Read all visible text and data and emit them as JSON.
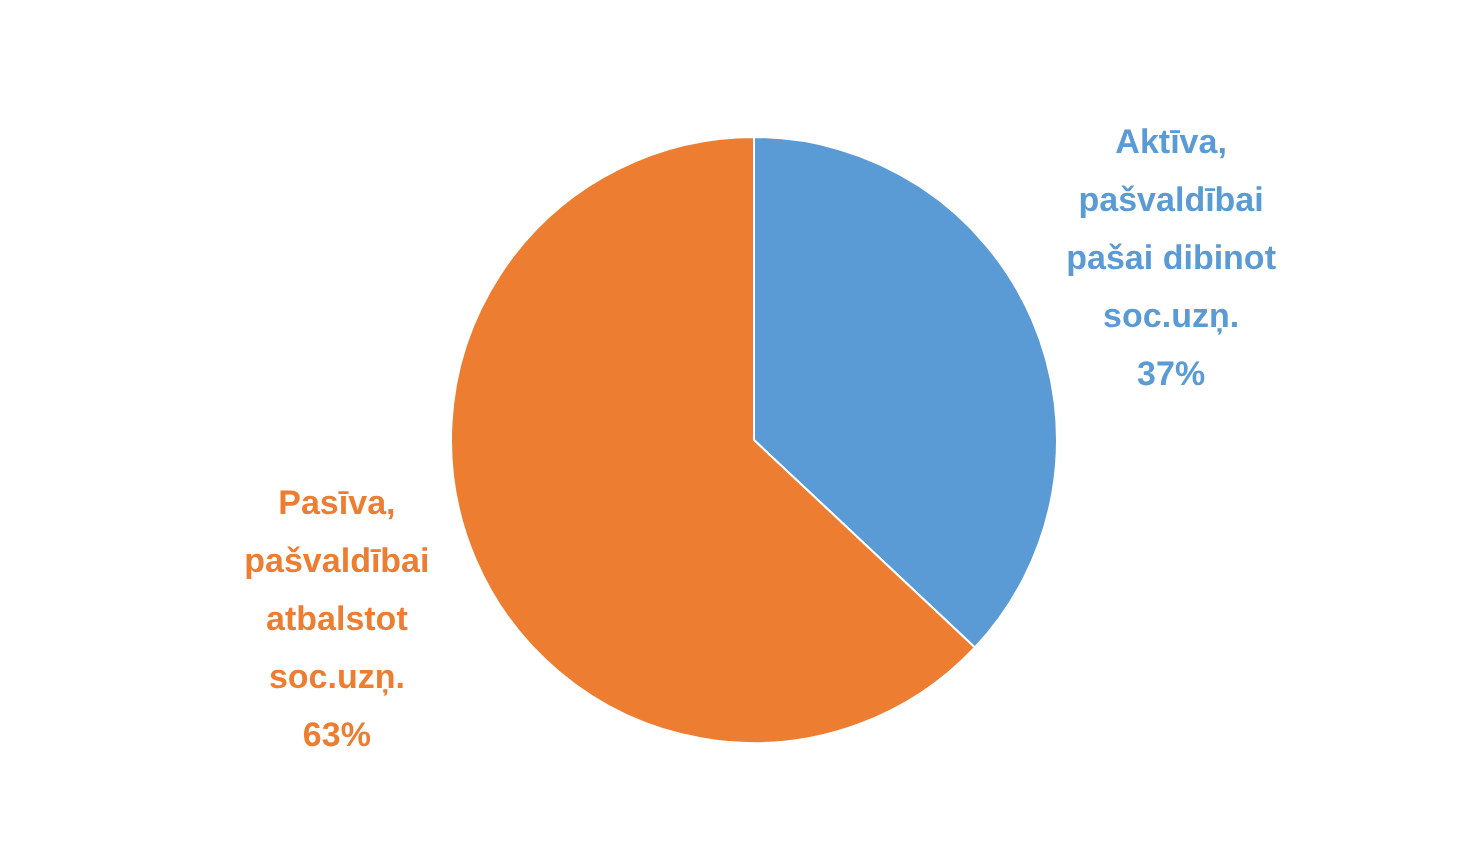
{
  "chart_data": {
    "type": "pie",
    "categories": [
      "Aktīva, pašvaldībai pašai dibinot soc.uzņ.",
      "Pasīva, pašvaldībai atbalstot soc.uzņ."
    ],
    "values": [
      37,
      63
    ],
    "colors": [
      "#5b9bd5",
      "#ed7d31"
    ],
    "value_labels": [
      "37%",
      "63%"
    ]
  }
}
